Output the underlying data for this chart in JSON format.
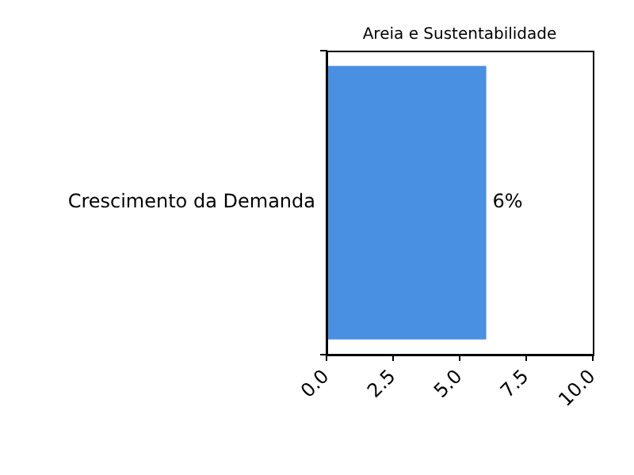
{
  "chart_data": {
    "type": "bar",
    "orientation": "horizontal",
    "title": "Areia e Sustentabilidade",
    "categories": [
      "Crescimento da Demanda"
    ],
    "values": [
      6
    ],
    "color": "#4a90e2",
    "value_labels": [
      "6%"
    ],
    "xlim": [
      0,
      10
    ],
    "xticks": [
      {
        "value": 0,
        "label": "0.0"
      },
      {
        "value": 2.5,
        "label": "2.5"
      },
      {
        "value": 5,
        "label": "5.0"
      },
      {
        "value": 7.5,
        "label": "7.5"
      },
      {
        "value": 10,
        "label": "10.0"
      }
    ],
    "grid": false,
    "legend": false
  }
}
